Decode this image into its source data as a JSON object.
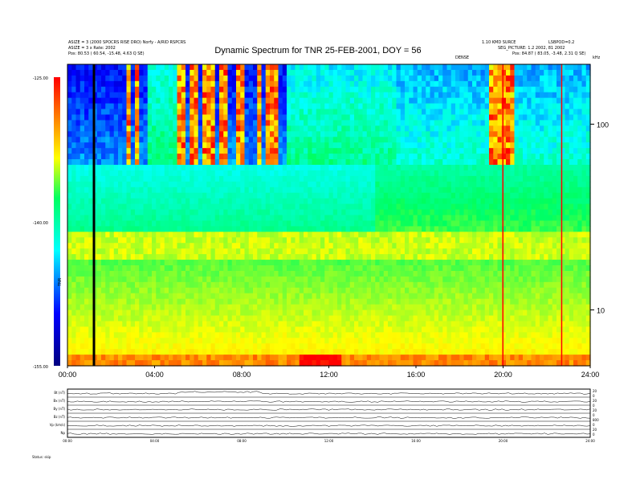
{
  "header": {
    "top_left_1": "ASIZE = 3 (2000 SPOCRS RISE DRO) Norfy - A/RID RSPCRS",
    "top_left_2": "ASIZE = 3 x Rate: 2002",
    "top_left_3": "Pos:   80.53 ( 60.54, -15.48, 4.63 Q SE)",
    "top_right_1": "1.10 KMD SURCE",
    "top_right_2": "LSBPOD=0.2",
    "top_right_3": "SEG_PICTURE: 1.2 2002, 81 2002",
    "top_right_4": "Pos:   84.87 ( 83.05, -3.48, 2.31 Q SE)",
    "mid_label": "DENSE",
    "khz_label": "kHz"
  },
  "chart_data": {
    "type": "heatmap",
    "title": "Dynamic Spectrum for TNR 25-FEB-2001, DOY = 56",
    "x_ticks": [
      "00:00",
      "04:00",
      "08:00",
      "12:00",
      "16:00",
      "20:00",
      "24:00"
    ],
    "x_range_hours": [
      0,
      24
    ],
    "y_right_ticks": [
      "100",
      "10"
    ],
    "y_scale": "log",
    "colorbar_ticks": [
      "-125.00",
      "-140.00",
      "-155.00"
    ],
    "colorbar_range": [
      -155,
      -125
    ],
    "colorbar_label": "TNR",
    "colormap": [
      "#000080",
      "#0000ff",
      "#00ffff",
      "#ffff00",
      "#ff8000",
      "#ff0000"
    ],
    "events_hours": [
      1.2,
      20.0,
      22.7
    ]
  },
  "bottom_panels": {
    "labels": [
      "Bt (nT)",
      "Bx (nT)",
      "By (nT)",
      "Bz (nT)",
      "Vp (km/s)",
      "Np"
    ],
    "right_values": [
      "20",
      "0",
      "20",
      "0",
      "20",
      "0",
      "800",
      "0",
      "20",
      "0"
    ],
    "x_ticks": [
      "00:00",
      "04:00",
      "08:00",
      "12:00",
      "16:00",
      "20:00",
      "24:00"
    ],
    "footer": "Status:  skip"
  }
}
